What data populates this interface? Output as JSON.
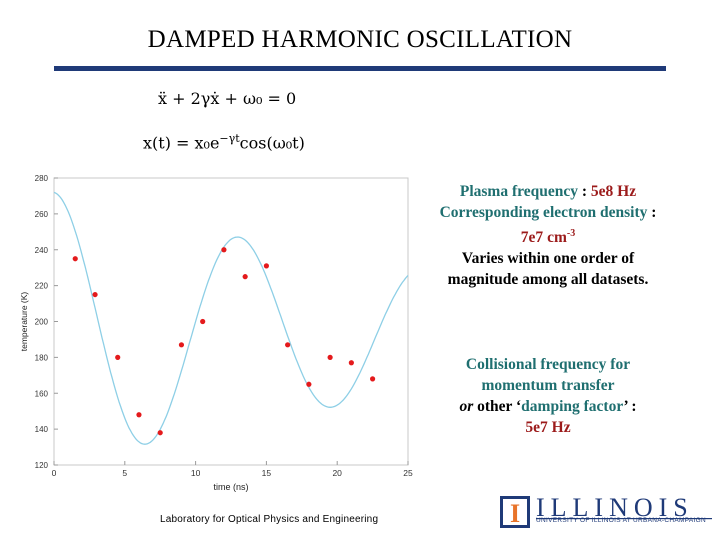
{
  "slide": {
    "title": "DAMPED HARMONIC OSCILLATION",
    "equation1": "ẍ + 2γẋ + ω₀ = 0",
    "equation2_prefix": "x(t) = x₀e",
    "equation2_exponent": "−γt",
    "equation2_suffix": "cos(ω₀t)",
    "footer": "Laboratory for Optical Physics and Engineering",
    "logo_word": "ILLINOIS",
    "logo_subtitle": "UNIVERSITY OF ILLINOIS AT URBANA-CHAMPAIGN",
    "logo_mark": "I"
  },
  "notes": {
    "plasma_label": "Plasma frequency",
    "plasma_colon": " : ",
    "plasma_value": "5e8 Hz",
    "density_label": "Corresponding electron density",
    "density_colon": " : ",
    "density_value": "7e7",
    "density_unit": " cm",
    "density_exp": "-3",
    "variation": "Varies within one order of magnitude among all datasets.",
    "collision_label": "Collisional frequency for momentum transfer",
    "collision_or": "or",
    "collision_other": " other ‘",
    "collision_damping": "damping factor",
    "collision_close": "’ : ",
    "collision_value": "5e7 Hz"
  },
  "chart_data": {
    "type": "scatter",
    "xlabel": "time (ns)",
    "ylabel": "temperature (K)",
    "xlim": [
      0,
      25
    ],
    "ylim": [
      120,
      280
    ],
    "xticks": [
      "0",
      "5",
      "10",
      "15",
      "20",
      "25"
    ],
    "yticks": [
      "120",
      "140",
      "160",
      "180",
      "200",
      "220",
      "240",
      "260",
      "280"
    ],
    "grid": false,
    "points": {
      "x": [
        1.5,
        2.9,
        4.5,
        6.0,
        7.5,
        9.0,
        10.5,
        12.0,
        13.5,
        15.0,
        16.5,
        18.0,
        19.5,
        21.0,
        22.5
      ],
      "y": [
        235,
        215,
        180,
        148,
        138,
        187,
        200,
        240,
        225,
        231,
        187,
        165,
        180,
        177,
        168
      ],
      "color": "#e41a1c"
    },
    "fit": {
      "model": "y = 195 + 77·e^(−0.03·t)·cos(0.48·t)",
      "color": "#8ecfe6"
    }
  }
}
